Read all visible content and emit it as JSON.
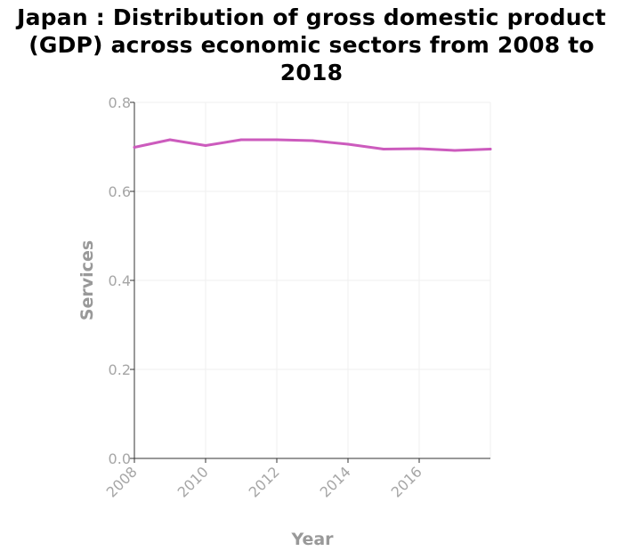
{
  "chart_data": {
    "type": "line",
    "title_lines": [
      "Japan : Distribution of gross domestic product",
      "(GDP) across economic sectors from 2008 to",
      "2018"
    ],
    "xlabel": "Year",
    "ylabel": "Services",
    "xlim": [
      2008,
      2018
    ],
    "ylim": [
      0,
      0.8
    ],
    "xticks": [
      2008,
      2010,
      2012,
      2014,
      2016
    ],
    "xtick_labels": [
      "2008",
      "2010",
      "2012",
      "2014",
      "2016"
    ],
    "yticks": [
      0,
      0.2,
      0.4,
      0.6,
      0.8
    ],
    "ytick_labels": [
      "0.0",
      "0.2",
      "0.4",
      "0.6",
      "0.8"
    ],
    "grid": true,
    "series": [
      {
        "color": "#cc5bbd",
        "x": [
          2008,
          2009,
          2010,
          2011,
          2012,
          2013,
          2014,
          2015,
          2016,
          2017,
          2018
        ],
        "y": [
          0.699,
          0.716,
          0.703,
          0.716,
          0.716,
          0.714,
          0.706,
          0.695,
          0.696,
          0.692,
          0.695
        ]
      }
    ]
  }
}
